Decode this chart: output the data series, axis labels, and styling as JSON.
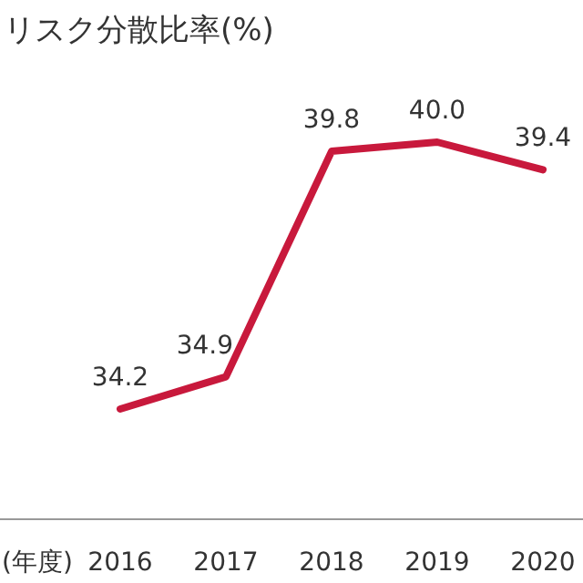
{
  "chart_data": {
    "type": "line",
    "title": "リスク分散比率(%)",
    "xlabel": "(年度)",
    "categories": [
      "2016",
      "2017",
      "2018",
      "2019",
      "2020"
    ],
    "series": [
      {
        "color": "#c8193c",
        "values": [
          34.2,
          34.9,
          39.8,
          40.0,
          39.4
        ],
        "value_labels": [
          "34.2",
          "34.9",
          "39.8",
          "40.0",
          "39.4"
        ]
      }
    ],
    "tick_labels": "x",
    "marker": "none",
    "line_style": "solid"
  }
}
